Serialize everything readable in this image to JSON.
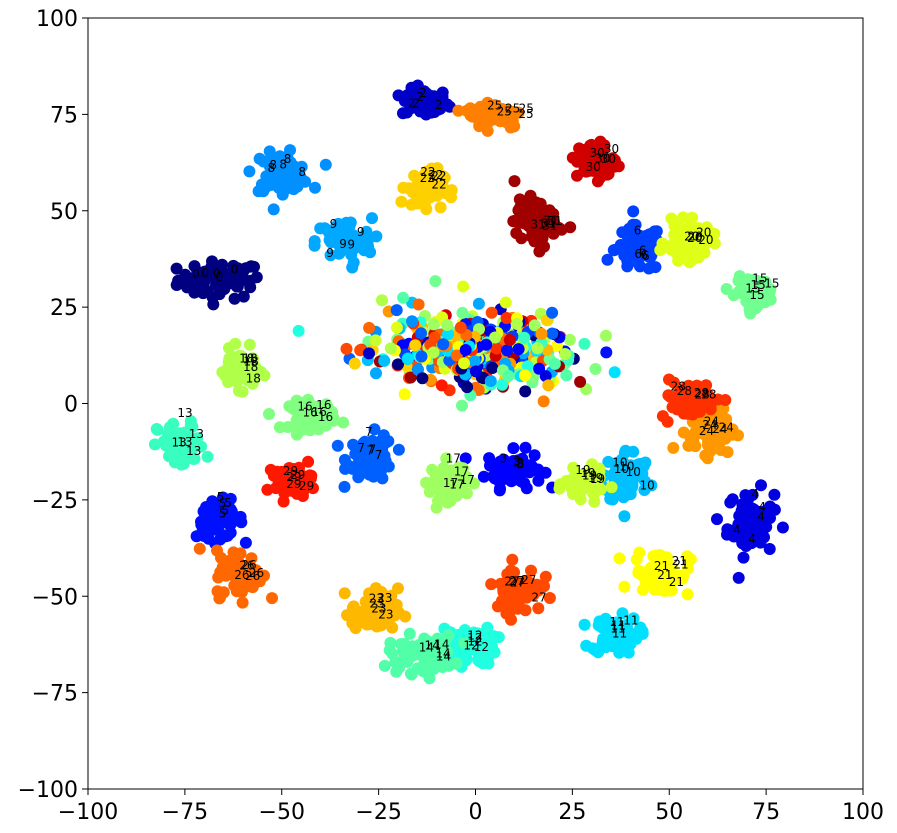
{
  "chart_data": {
    "type": "scatter",
    "title": "",
    "xlabel": "",
    "ylabel": "",
    "xlim": [
      -100,
      100
    ],
    "ylim": [
      -100,
      100
    ],
    "xticks": [
      -100,
      -75,
      -50,
      -25,
      0,
      25,
      50,
      75,
      100
    ],
    "yticks": [
      -100,
      -75,
      -50,
      -25,
      0,
      25,
      50,
      75,
      100
    ],
    "xtick_labels": [
      "−100",
      "−75",
      "−50",
      "−25",
      "0",
      "25",
      "50",
      "75",
      "100"
    ],
    "ytick_labels": [
      "−100",
      "−75",
      "−50",
      "−25",
      "0",
      "25",
      "50",
      "75",
      "100"
    ],
    "grid": false,
    "legend": "none",
    "colormap": "jet",
    "series": [
      {
        "label": "0",
        "color": "#000080",
        "x": -66,
        "y": 32,
        "sx": 9,
        "sy": 4
      },
      {
        "label": "2",
        "color": "#0000c8",
        "x": -13,
        "y": 78,
        "sx": 5,
        "sy": 3
      },
      {
        "label": "3",
        "color": "#0000ff",
        "x": 10,
        "y": -17,
        "sx": 6,
        "sy": 4
      },
      {
        "label": "4",
        "color": "#0000e0",
        "x": 71,
        "y": -31,
        "sx": 5,
        "sy": 7
      },
      {
        "label": "5",
        "color": "#0010ff",
        "x": -66,
        "y": -30,
        "sx": 5,
        "sy": 4
      },
      {
        "label": "6",
        "color": "#0040ff",
        "x": 42,
        "y": 40,
        "sx": 5,
        "sy": 5
      },
      {
        "label": "7",
        "color": "#0060ff",
        "x": -27,
        "y": -14,
        "sx": 5,
        "sy": 5
      },
      {
        "label": "8",
        "color": "#0090ff",
        "x": -50,
        "y": 60,
        "sx": 6,
        "sy": 4
      },
      {
        "label": "9",
        "color": "#00a8ff",
        "x": -34,
        "y": 42,
        "sx": 6,
        "sy": 5
      },
      {
        "label": "10",
        "color": "#00c0ff",
        "x": 39,
        "y": -19,
        "sx": 5,
        "sy": 6
      },
      {
        "label": "11",
        "color": "#00e0ff",
        "x": 36,
        "y": -60,
        "sx": 5,
        "sy": 4
      },
      {
        "label": "12",
        "color": "#20ffe0",
        "x": -2,
        "y": -63,
        "sx": 6,
        "sy": 4
      },
      {
        "label": "13",
        "color": "#38ffc0",
        "x": -76,
        "y": -11,
        "sx": 5,
        "sy": 5
      },
      {
        "label": "14",
        "color": "#50ffa8",
        "x": -14,
        "y": -65,
        "sx": 7,
        "sy": 4
      },
      {
        "label": "15",
        "color": "#70ff90",
        "x": 72,
        "y": 29,
        "sx": 4,
        "sy": 3
      },
      {
        "label": "16",
        "color": "#80ff80",
        "x": -42,
        "y": -3,
        "sx": 5,
        "sy": 3
      },
      {
        "label": "17",
        "color": "#a0ff60",
        "x": -7,
        "y": -20,
        "sx": 4,
        "sy": 4
      },
      {
        "label": "18",
        "color": "#b0ff48",
        "x": -61,
        "y": 9,
        "sx": 4,
        "sy": 4
      },
      {
        "label": "19",
        "color": "#c8ff30",
        "x": 28,
        "y": -21,
        "sx": 4,
        "sy": 3
      },
      {
        "label": "20",
        "color": "#e0ff18",
        "x": 55,
        "y": 42,
        "sx": 5,
        "sy": 4
      },
      {
        "label": "21",
        "color": "#ffff00",
        "x": 48,
        "y": -44,
        "sx": 6,
        "sy": 5
      },
      {
        "label": "22",
        "color": "#ffd000",
        "x": -13,
        "y": 56,
        "sx": 4,
        "sy": 4
      },
      {
        "label": "23",
        "color": "#ffb800",
        "x": -26,
        "y": -54,
        "sx": 5,
        "sy": 5
      },
      {
        "label": "24",
        "color": "#ff9800",
        "x": 61,
        "y": -7,
        "sx": 5,
        "sy": 5
      },
      {
        "label": "25",
        "color": "#ff8000",
        "x": 5,
        "y": 75,
        "sx": 6,
        "sy": 3
      },
      {
        "label": "26",
        "color": "#ff6800",
        "x": -61,
        "y": -44,
        "sx": 5,
        "sy": 5
      },
      {
        "label": "27",
        "color": "#ff4800",
        "x": 11,
        "y": -48,
        "sx": 5,
        "sy": 5
      },
      {
        "label": "28",
        "color": "#ff3000",
        "x": 55,
        "y": 1,
        "sx": 6,
        "sy": 4
      },
      {
        "label": "29",
        "color": "#ff1800",
        "x": -47,
        "y": -20,
        "sx": 4,
        "sy": 3
      },
      {
        "label": "30",
        "color": "#d00000",
        "x": 31,
        "y": 63,
        "sx": 4,
        "sy": 4
      },
      {
        "label": "31",
        "color": "#a00000",
        "x": 16,
        "y": 47,
        "sx": 5,
        "sy": 5
      }
    ],
    "center_blob": {
      "x": 0,
      "y": 18,
      "sx": 23,
      "sy": 9
    }
  }
}
